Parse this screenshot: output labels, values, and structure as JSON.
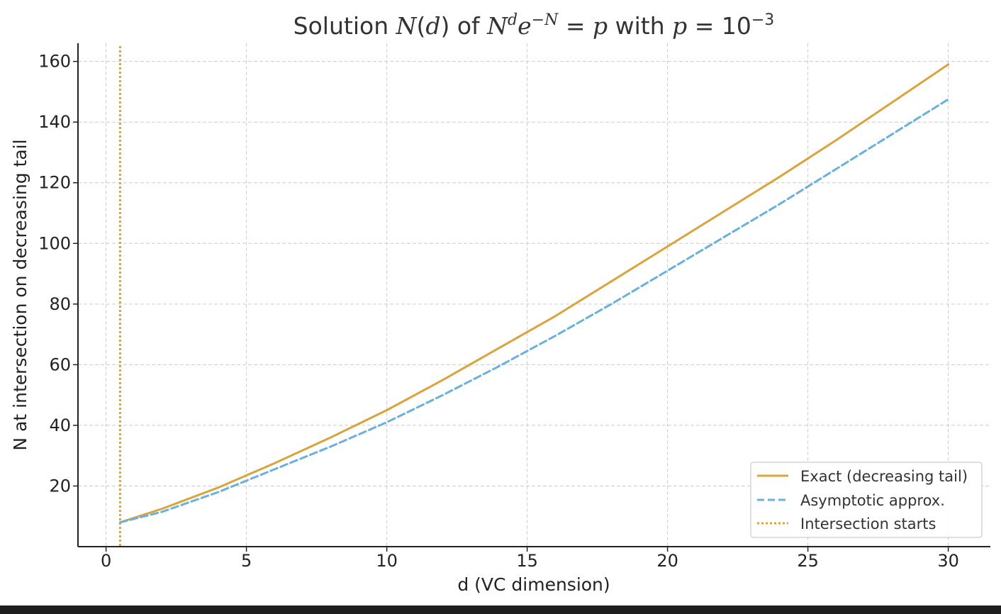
{
  "chart_data": {
    "type": "line",
    "title": {
      "prefix": "Solution ",
      "func_N": "N",
      "func_open": "(",
      "func_d": "d",
      "func_close": ")",
      "of": " of ",
      "eq_N": "N",
      "eq_sup_d": "d",
      "eq_e": "e",
      "eq_sup_exp": "−N",
      "eq_equals": " = ",
      "eq_p": "p",
      "with": " with ",
      "p_sym": "p",
      "p_equals": " = ",
      "p_base": "10",
      "p_exp": "−3"
    },
    "xlabel": "d (VC dimension)",
    "ylabel": "N at intersection on decreasing tail",
    "xlim": [
      -1,
      31.5
    ],
    "ylim": [
      0,
      166
    ],
    "xticks": [
      0,
      5,
      10,
      15,
      20,
      25,
      30
    ],
    "yticks": [
      20,
      40,
      60,
      80,
      100,
      120,
      140,
      160
    ],
    "grid": true,
    "legend_position": "bottom-right",
    "series": [
      {
        "name": "Exact (decreasing tail)",
        "style": "solid",
        "color": "#d9a43c",
        "x": [
          0.5,
          2,
          4,
          6,
          8,
          10,
          12,
          14,
          16,
          18,
          20,
          22,
          24,
          26,
          28,
          30
        ],
        "y": [
          8,
          12.5,
          19.5,
          27.5,
          36,
          45,
          55,
          65.5,
          76,
          87.5,
          99,
          110.5,
          122,
          134,
          146.5,
          159
        ]
      },
      {
        "name": "Asymptotic approx.",
        "style": "dashed",
        "color": "#6ab0de",
        "x": [
          0.5,
          2,
          4,
          6,
          8,
          10,
          12,
          14,
          16,
          18,
          20,
          22,
          24,
          26,
          28,
          30
        ],
        "y": [
          8,
          11.5,
          18,
          25.5,
          33,
          41,
          50,
          59.5,
          69.5,
          80,
          91,
          102,
          113,
          124.5,
          136,
          147.5
        ]
      },
      {
        "name": "Intersection starts",
        "style": "dotted",
        "color": "#d9a43c",
        "vline_x": 0.5
      }
    ]
  }
}
